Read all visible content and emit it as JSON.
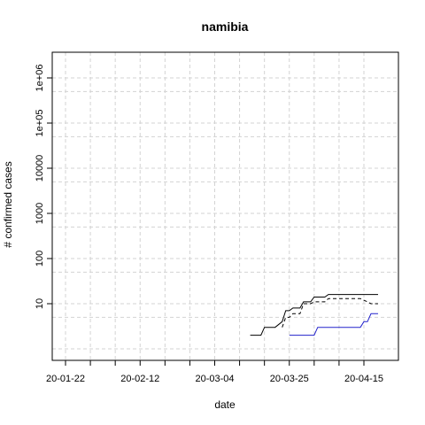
{
  "chart_data": {
    "type": "line",
    "title": "namibia",
    "xlabel": "date",
    "ylabel": "# confirmed cases",
    "y_scale": "log",
    "grid": true,
    "x_tick_labels": [
      "20-01-22",
      "20-02-12",
      "20-03-04",
      "20-03-25",
      "20-04-15"
    ],
    "y_tick_labels": [
      "10",
      "100",
      "1000",
      "10000",
      "1e+05",
      "1e+06"
    ],
    "y_tick_values": [
      10,
      100,
      1000,
      10000,
      100000,
      1000000
    ],
    "x_range": [
      "20-01-22",
      "20-04-20"
    ],
    "ylim": [
      0.7,
      3000000
    ],
    "series": [
      {
        "color": "#000000",
        "dash": "solid",
        "points": [
          [
            "20-03-14",
            2
          ],
          [
            "20-03-17",
            2
          ],
          [
            "20-03-18",
            3
          ],
          [
            "20-03-21",
            3
          ],
          [
            "20-03-23",
            4
          ],
          [
            "20-03-24",
            7
          ],
          [
            "20-03-25",
            7
          ],
          [
            "20-03-26",
            8
          ],
          [
            "20-03-27",
            8
          ],
          [
            "20-03-28",
            8
          ],
          [
            "20-03-29",
            11
          ],
          [
            "20-03-31",
            11
          ],
          [
            "20-04-01",
            14
          ],
          [
            "20-04-04",
            14
          ],
          [
            "20-04-05",
            16
          ],
          [
            "20-04-19",
            16
          ]
        ]
      },
      {
        "color": "#000000",
        "dash": "dashed",
        "points": [
          [
            "20-03-23",
            3
          ],
          [
            "20-03-24",
            5
          ],
          [
            "20-03-25",
            5
          ],
          [
            "20-03-26",
            6
          ],
          [
            "20-03-28",
            6
          ],
          [
            "20-03-29",
            10
          ],
          [
            "20-03-31",
            10
          ],
          [
            "20-04-01",
            11
          ],
          [
            "20-04-04",
            11
          ],
          [
            "20-04-05",
            13
          ],
          [
            "20-04-14",
            13
          ],
          [
            "20-04-16",
            11
          ],
          [
            "20-04-17",
            10
          ],
          [
            "20-04-19",
            10
          ]
        ]
      },
      {
        "color": "#2222cc",
        "dash": "solid",
        "points": [
          [
            "20-03-25",
            2
          ],
          [
            "20-04-01",
            2
          ],
          [
            "20-04-02",
            3
          ],
          [
            "20-04-14",
            3
          ],
          [
            "20-04-15",
            4
          ],
          [
            "20-04-16",
            4
          ],
          [
            "20-04-17",
            6
          ],
          [
            "20-04-19",
            6
          ]
        ]
      }
    ]
  }
}
